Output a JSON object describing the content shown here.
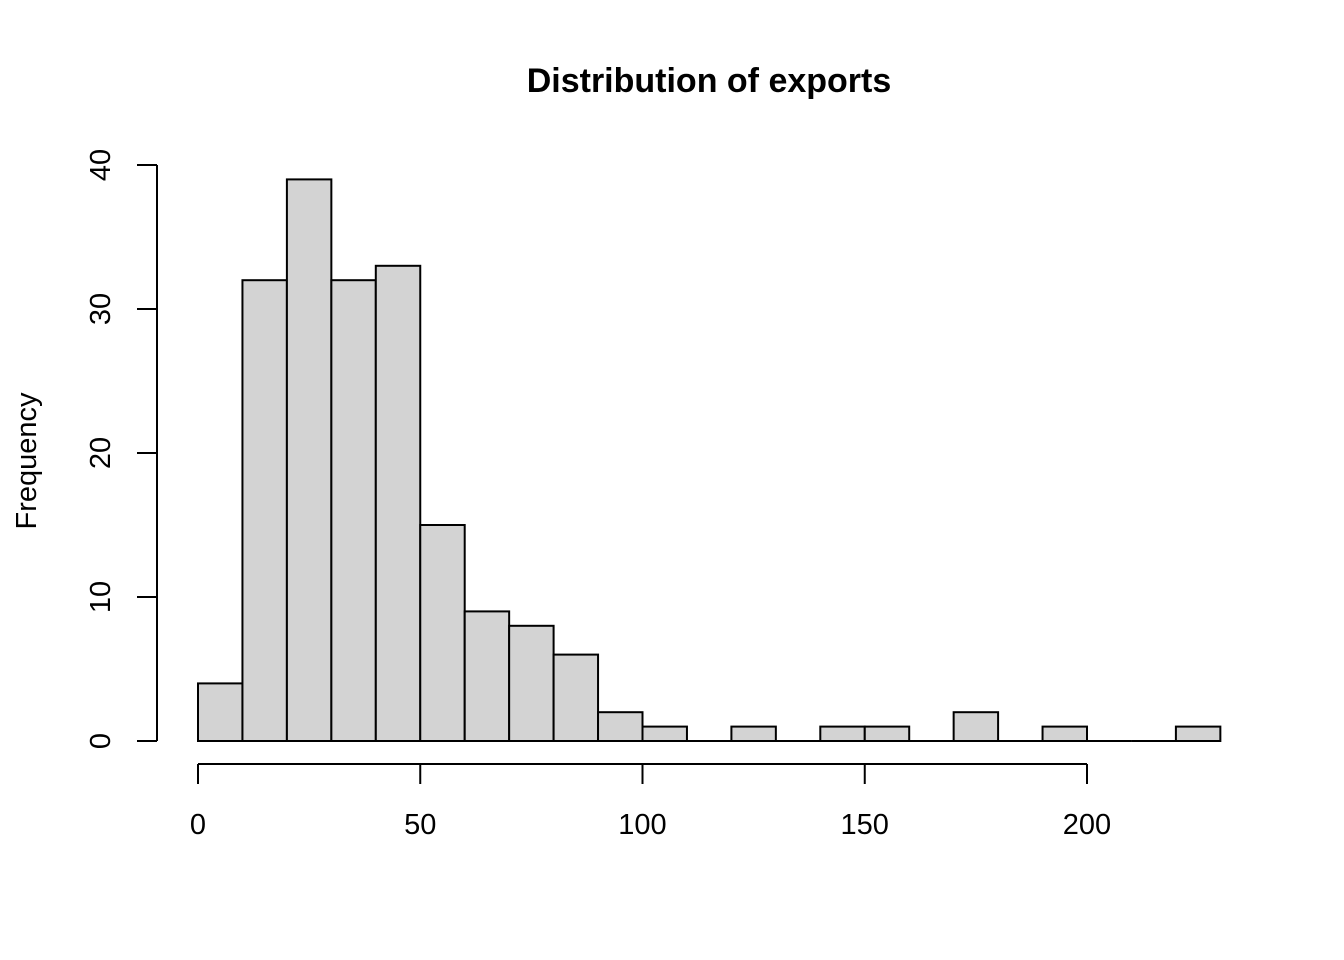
{
  "chart_data": {
    "type": "bar",
    "title": "Distribution of exports",
    "xlabel": "",
    "ylabel": "Frequency",
    "bar_color": "#d3d3d3",
    "bins": [
      {
        "start": 0,
        "end": 10,
        "count": 4
      },
      {
        "start": 10,
        "end": 20,
        "count": 32
      },
      {
        "start": 20,
        "end": 30,
        "count": 39
      },
      {
        "start": 30,
        "end": 40,
        "count": 32
      },
      {
        "start": 40,
        "end": 50,
        "count": 33
      },
      {
        "start": 50,
        "end": 60,
        "count": 15
      },
      {
        "start": 60,
        "end": 70,
        "count": 9
      },
      {
        "start": 70,
        "end": 80,
        "count": 8
      },
      {
        "start": 80,
        "end": 90,
        "count": 6
      },
      {
        "start": 90,
        "end": 100,
        "count": 2
      },
      {
        "start": 100,
        "end": 110,
        "count": 1
      },
      {
        "start": 110,
        "end": 120,
        "count": 0
      },
      {
        "start": 120,
        "end": 130,
        "count": 1
      },
      {
        "start": 130,
        "end": 140,
        "count": 0
      },
      {
        "start": 140,
        "end": 150,
        "count": 1
      },
      {
        "start": 150,
        "end": 160,
        "count": 1
      },
      {
        "start": 160,
        "end": 170,
        "count": 0
      },
      {
        "start": 170,
        "end": 180,
        "count": 2
      },
      {
        "start": 180,
        "end": 190,
        "count": 0
      },
      {
        "start": 190,
        "end": 200,
        "count": 1
      },
      {
        "start": 200,
        "end": 210,
        "count": 0
      },
      {
        "start": 210,
        "end": 220,
        "count": 0
      },
      {
        "start": 220,
        "end": 230,
        "count": 1
      }
    ],
    "xlim": [
      0,
      230
    ],
    "ylim": [
      0,
      40
    ],
    "xticks": [
      0,
      50,
      100,
      150,
      200
    ],
    "xtick_labels": [
      "0",
      "50",
      "100",
      "150",
      "200"
    ],
    "yticks": [
      0,
      10,
      20,
      30,
      40
    ],
    "ytick_labels": [
      "0",
      "10",
      "20",
      "30",
      "40"
    ],
    "grid": false,
    "legend": "none"
  }
}
